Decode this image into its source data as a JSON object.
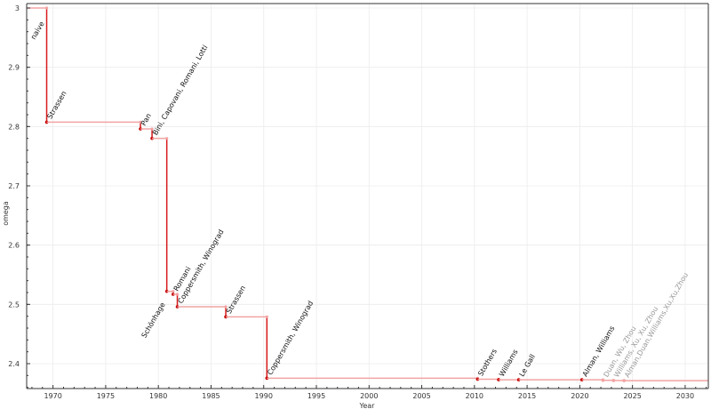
{
  "chart_data": {
    "type": "line",
    "step": true,
    "xlabel": "Year",
    "ylabel": "omega",
    "xlim": [
      1967.5,
      2032.2
    ],
    "ylim": [
      2.358,
      3.0075
    ],
    "xticks": [
      1970,
      1975,
      1980,
      1985,
      1990,
      1995,
      2000,
      2005,
      2010,
      2015,
      2020,
      2025,
      2030
    ],
    "yticks": [
      2.4,
      2.5,
      2.6,
      2.7,
      2.8,
      2.9,
      3
    ],
    "ytick_labels": [
      "2.4",
      "2.5",
      "2.6",
      "2.7",
      "2.8",
      "2.9",
      "3"
    ],
    "grid": true,
    "colors": {
      "horizontal": "#f2a3a3",
      "vertical": "#d81b1b",
      "point": "#c40000",
      "faded_label": "#999999"
    },
    "start": {
      "label": "naive",
      "x": 1967.5,
      "y": 3
    },
    "points": [
      {
        "label": "Strassen",
        "x": 1969.4,
        "y": 2.8074,
        "faded": false
      },
      {
        "label": "Pan",
        "x": 1978.3,
        "y": 2.796,
        "faded": false
      },
      {
        "label": "Bini, Capovani, Romani, Lotti",
        "x": 1979.4,
        "y": 2.78,
        "faded": false
      },
      {
        "label": "Schönhage",
        "x": 1980.8,
        "y": 2.522,
        "faded": false,
        "label_side": "left"
      },
      {
        "label": "Romani",
        "x": 1981.4,
        "y": 2.517,
        "faded": false
      },
      {
        "label": "Coppersmith, Winograd",
        "x": 1981.8,
        "y": 2.496,
        "faded": false
      },
      {
        "label": "Strassen",
        "x": 1986.4,
        "y": 2.479,
        "faded": false
      },
      {
        "label": "Coppersmith, Winograd",
        "x": 1990.3,
        "y": 2.3755,
        "faded": false
      },
      {
        "label": "Stothers",
        "x": 2010.3,
        "y": 2.3737,
        "faded": false
      },
      {
        "label": "Williams",
        "x": 2012.3,
        "y": 2.3729,
        "faded": false
      },
      {
        "label": "Le Gall",
        "x": 2014.2,
        "y": 2.37286,
        "faded": false
      },
      {
        "label": "Alman, Williams",
        "x": 2020.2,
        "y": 2.37286,
        "faded": false
      },
      {
        "label": "Duan, Wu, Zhou",
        "x": 2022.2,
        "y": 2.37187,
        "faded": true
      },
      {
        "label": "Williams, Xu, Xu, Zhou",
        "x": 2023.2,
        "y": 2.37155,
        "faded": true
      },
      {
        "label": "Alman,Duan,Williams,Xu,Xu,Zhou",
        "x": 2024.2,
        "y": 2.37134,
        "faded": true
      }
    ]
  }
}
